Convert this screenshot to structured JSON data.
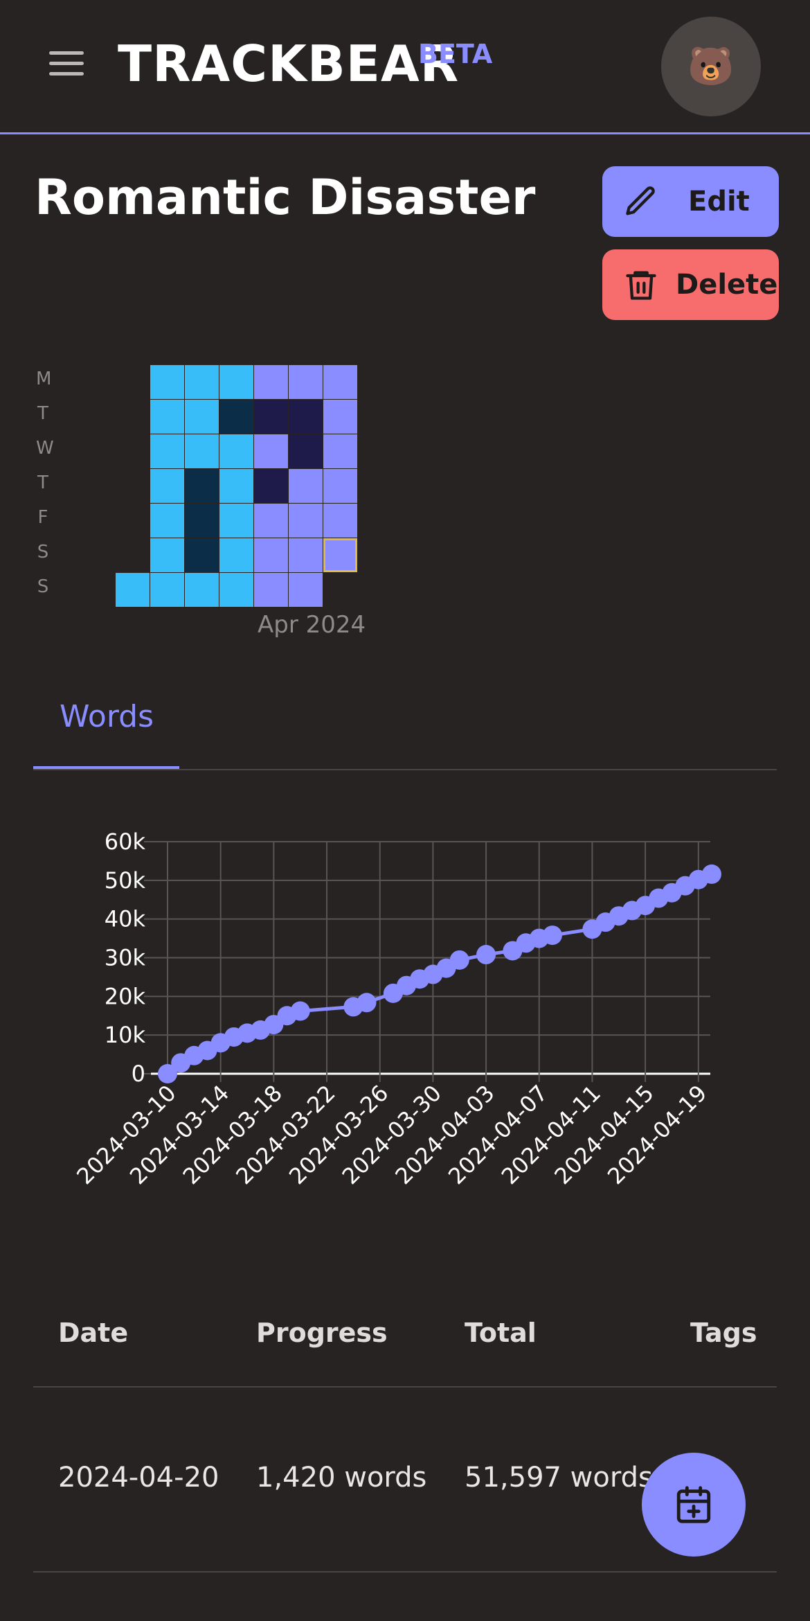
{
  "header": {
    "brand": "TRACKBEAR",
    "badge": "BETA",
    "avatar_emoji": "🐻",
    "menu_icon": "hamburger-icon"
  },
  "project": {
    "title": "Romantic Disaster",
    "edit_label": "Edit",
    "delete_label": "Delete"
  },
  "heatmap": {
    "weekdays": [
      "M",
      "T",
      "W",
      "T",
      "F",
      "S",
      "S"
    ],
    "month_label": "Apr 2024",
    "colors": {
      "cyan": "#38bdf8",
      "dark_navy": "#0c2d48",
      "indigo": "#8a8dff",
      "dark_indigo": "#1e1b4b",
      "highlight_border": "#e0b94a"
    },
    "columns": [
      [
        "",
        "",
        "",
        "",
        "",
        "",
        "cyan"
      ],
      [
        "cyan",
        "cyan",
        "cyan",
        "cyan",
        "cyan",
        "cyan",
        "cyan"
      ],
      [
        "cyan",
        "cyan",
        "cyan",
        "dark_navy",
        "dark_navy",
        "dark_navy",
        "cyan"
      ],
      [
        "cyan",
        "dark_navy",
        "cyan",
        "cyan",
        "cyan",
        "cyan",
        "cyan"
      ],
      [
        "indigo",
        "dark_indigo",
        "indigo",
        "dark_indigo",
        "indigo",
        "indigo",
        "indigo"
      ],
      [
        "indigo",
        "dark_indigo",
        "dark_indigo",
        "indigo",
        "indigo",
        "indigo",
        "indigo"
      ],
      [
        "indigo",
        "indigo",
        "indigo",
        "indigo",
        "indigo",
        "indigo",
        ""
      ]
    ],
    "highlighted_cell": [
      6,
      5
    ]
  },
  "tabs": [
    {
      "label": "Words",
      "active": true
    }
  ],
  "chart_data": {
    "type": "line",
    "y_ticks": [
      "0",
      "10k",
      "20k",
      "30k",
      "40k",
      "50k",
      "60k"
    ],
    "ylim": [
      0,
      60000
    ],
    "x_tick_labels": [
      "2024-03-10",
      "2024-03-14",
      "2024-03-18",
      "2024-03-22",
      "2024-03-26",
      "2024-03-30",
      "2024-04-03",
      "2024-04-07",
      "2024-04-11",
      "2024-04-15",
      "2024-04-19"
    ],
    "xlim": [
      "2024-03-10",
      "2024-04-20"
    ],
    "series": [
      {
        "color": "#8a8dff",
        "points": [
          [
            "2024-03-10",
            0
          ],
          [
            "2024-03-11",
            2800
          ],
          [
            "2024-03-12",
            4700
          ],
          [
            "2024-03-13",
            6000
          ],
          [
            "2024-03-14",
            8000
          ],
          [
            "2024-03-15",
            9500
          ],
          [
            "2024-03-16",
            10500
          ],
          [
            "2024-03-17",
            11300
          ],
          [
            "2024-03-18",
            12700
          ],
          [
            "2024-03-19",
            15000
          ],
          [
            "2024-03-20",
            16200
          ],
          [
            "2024-03-24",
            17300
          ],
          [
            "2024-03-25",
            18400
          ],
          [
            "2024-03-27",
            20800
          ],
          [
            "2024-03-28",
            22800
          ],
          [
            "2024-03-29",
            24500
          ],
          [
            "2024-03-30",
            25700
          ],
          [
            "2024-03-31",
            27300
          ],
          [
            "2024-04-01",
            29400
          ],
          [
            "2024-04-03",
            30800
          ],
          [
            "2024-04-05",
            31800
          ],
          [
            "2024-04-06",
            33800
          ],
          [
            "2024-04-07",
            35000
          ],
          [
            "2024-04-08",
            35800
          ],
          [
            "2024-04-11",
            37400
          ],
          [
            "2024-04-12",
            39200
          ],
          [
            "2024-04-13",
            40800
          ],
          [
            "2024-04-14",
            42200
          ],
          [
            "2024-04-15",
            43500
          ],
          [
            "2024-04-16",
            45400
          ],
          [
            "2024-04-17",
            46800
          ],
          [
            "2024-04-18",
            48600
          ],
          [
            "2024-04-19",
            50200
          ],
          [
            "2024-04-20",
            51597
          ]
        ]
      }
    ],
    "grid": true
  },
  "table": {
    "headers": {
      "date": "Date",
      "progress": "Progress",
      "total": "Total",
      "tags": "Tags"
    },
    "rows": [
      {
        "date": "2024-04-20",
        "progress": "1,420 words",
        "total": "51,597 words"
      }
    ]
  },
  "fab": {
    "icon": "calendar-plus-icon"
  }
}
